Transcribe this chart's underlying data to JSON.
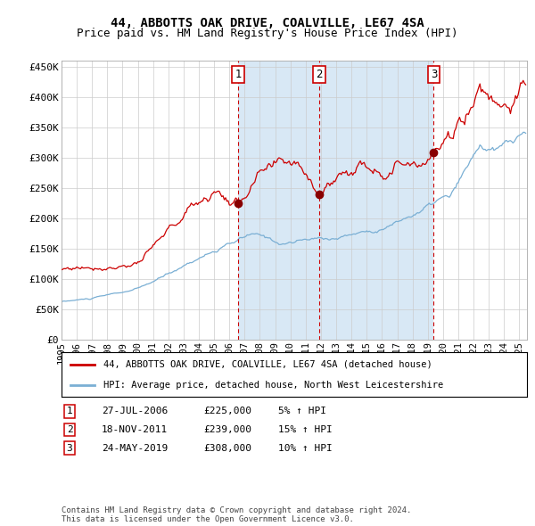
{
  "title": "44, ABBOTTS OAK DRIVE, COALVILLE, LE67 4SA",
  "subtitle": "Price paid vs. HM Land Registry's House Price Index (HPI)",
  "ylim": [
    0,
    460000
  ],
  "yticks": [
    0,
    50000,
    100000,
    150000,
    200000,
    250000,
    300000,
    350000,
    400000,
    450000
  ],
  "ytick_labels": [
    "£0",
    "£50K",
    "£100K",
    "£150K",
    "£200K",
    "£250K",
    "£300K",
    "£350K",
    "£400K",
    "£450K"
  ],
  "start_year": 1995,
  "end_year": 2025,
  "xlim": [
    1995,
    2025.5
  ],
  "red_line_label": "44, ABBOTTS OAK DRIVE, COALVILLE, LE67 4SA (detached house)",
  "blue_line_label": "HPI: Average price, detached house, North West Leicestershire",
  "sales": [
    {
      "num": 1,
      "date": "27-JUL-2006",
      "price": 225000,
      "pct": "5%",
      "direction": "↑"
    },
    {
      "num": 2,
      "date": "18-NOV-2011",
      "price": 239000,
      "pct": "15%",
      "direction": "↑"
    },
    {
      "num": 3,
      "date": "24-MAY-2019",
      "price": 308000,
      "pct": "10%",
      "direction": "↑"
    }
  ],
  "sale_dates_decimal": [
    2006.57,
    2011.88,
    2019.39
  ],
  "sale_prices": [
    225000,
    239000,
    308000
  ],
  "footer": "Contains HM Land Registry data © Crown copyright and database right 2024.\nThis data is licensed under the Open Government Licence v3.0.",
  "red_color": "#cc0000",
  "blue_color": "#7aafd4",
  "bg_shade_color": "#d8e8f5",
  "grid_color": "#cccccc",
  "title_fontsize": 10,
  "subtitle_fontsize": 9,
  "tick_fontsize": 8,
  "legend_fontsize": 7.5,
  "table_fontsize": 8,
  "footer_fontsize": 6.5
}
